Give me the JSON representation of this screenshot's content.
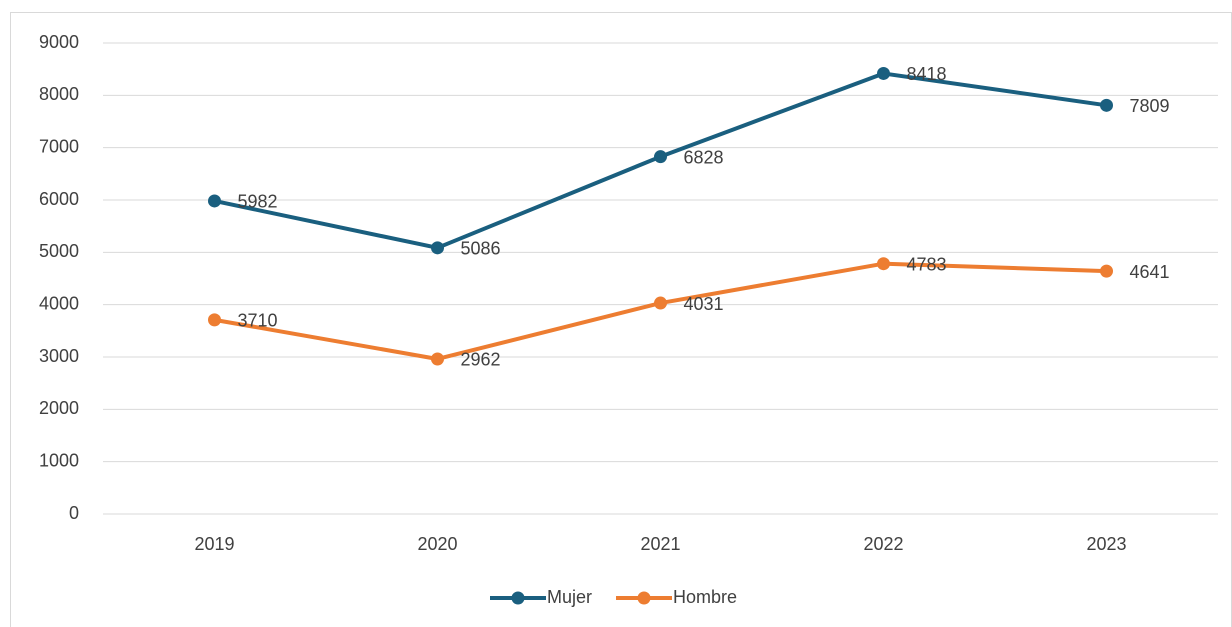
{
  "chart_data": {
    "type": "line",
    "categories": [
      "2019",
      "2020",
      "2021",
      "2022",
      "2023"
    ],
    "series": [
      {
        "name": "Mujer",
        "color": "#1a5f7f",
        "values": [
          5982,
          5086,
          6828,
          8418,
          7809
        ]
      },
      {
        "name": "Hombre",
        "color": "#ed7d31",
        "values": [
          3710,
          2962,
          4031,
          4783,
          4641
        ]
      }
    ],
    "ylim": [
      0,
      9000
    ],
    "yticks": [
      0,
      1000,
      2000,
      3000,
      4000,
      5000,
      6000,
      7000,
      8000,
      9000
    ],
    "grid": true,
    "legend": "bottom",
    "data_labels": true
  }
}
